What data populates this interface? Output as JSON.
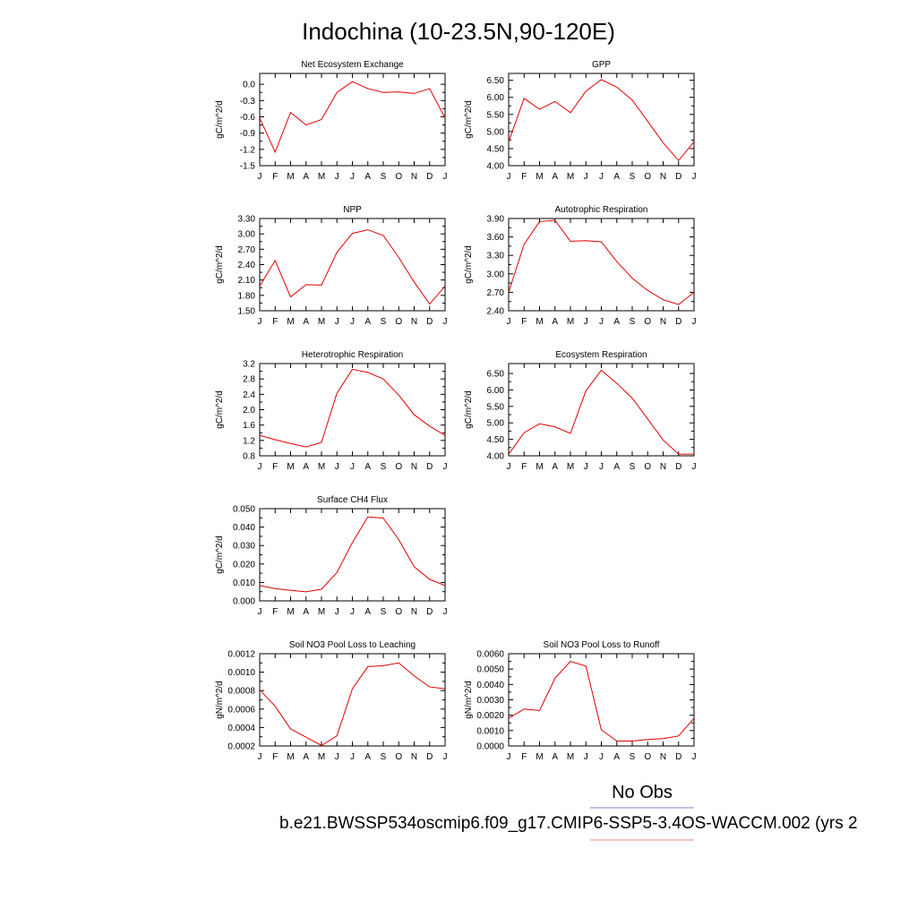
{
  "figure": {
    "title": "Indochina (10-23.5N,90-120E)",
    "months": [
      "J",
      "F",
      "M",
      "A",
      "M",
      "J",
      "J",
      "A",
      "S",
      "O",
      "N",
      "D",
      "J"
    ],
    "legend": {
      "obs_label": "No Obs",
      "case_label": "b.e21.BWSSP534oscmip6.f09_g17.CMIP6-SSP5-3.4OS-WACCM.002 (yrs 2",
      "obs_color": "#8080e0",
      "case_color": "#f08080"
    },
    "line_color": "#e00000"
  },
  "chart_data": [
    {
      "type": "line",
      "title": "Net Ecosystem Exchange",
      "ylabel": "gC/m^2/d",
      "ylim": [
        -1.5,
        0.2
      ],
      "yticks": [
        -1.5,
        -1.2,
        -0.9,
        -0.6,
        -0.3,
        0.0
      ],
      "ytick_labels": [
        "-1.5",
        "-1.2",
        "-0.9",
        "-0.6",
        "-0.3",
        "0.0"
      ],
      "x": [
        "J",
        "F",
        "M",
        "A",
        "M",
        "J",
        "J",
        "A",
        "S",
        "O",
        "N",
        "D",
        "J"
      ],
      "values": [
        -0.62,
        -1.25,
        -0.52,
        -0.75,
        -0.65,
        -0.15,
        0.05,
        -0.08,
        -0.15,
        -0.14,
        -0.17,
        -0.08,
        -0.62
      ]
    },
    {
      "type": "line",
      "title": "GPP",
      "ylabel": "gC/m^2/d",
      "ylim": [
        4.0,
        6.7
      ],
      "yticks": [
        4.0,
        4.5,
        5.0,
        5.5,
        6.0,
        6.5
      ],
      "ytick_labels": [
        "4.00",
        "4.50",
        "5.00",
        "5.50",
        "6.00",
        "6.50"
      ],
      "x": [
        "J",
        "F",
        "M",
        "A",
        "M",
        "J",
        "J",
        "A",
        "S",
        "O",
        "N",
        "D",
        "J"
      ],
      "values": [
        4.7,
        5.97,
        5.65,
        5.88,
        5.55,
        6.18,
        6.52,
        6.3,
        5.92,
        5.3,
        4.67,
        4.15,
        4.7
      ]
    },
    {
      "type": "line",
      "title": "NPP",
      "ylabel": "gC/m^2/d",
      "ylim": [
        1.5,
        3.3
      ],
      "yticks": [
        1.5,
        1.8,
        2.1,
        2.4,
        2.7,
        3.0,
        3.3
      ],
      "ytick_labels": [
        "1.50",
        "1.80",
        "2.10",
        "2.40",
        "2.70",
        "3.00",
        "3.30"
      ],
      "x": [
        "J",
        "F",
        "M",
        "A",
        "M",
        "J",
        "J",
        "A",
        "S",
        "O",
        "N",
        "D",
        "J"
      ],
      "values": [
        1.98,
        2.48,
        1.77,
        2.01,
        2.0,
        2.64,
        3.01,
        3.08,
        2.97,
        2.54,
        2.06,
        1.63,
        1.98
      ]
    },
    {
      "type": "line",
      "title": "Autotrophic Respiration",
      "ylabel": "gC/m^2/d",
      "ylim": [
        2.4,
        3.9
      ],
      "yticks": [
        2.4,
        2.7,
        3.0,
        3.3,
        3.6,
        3.9
      ],
      "ytick_labels": [
        "2.40",
        "2.70",
        "3.00",
        "3.30",
        "3.60",
        "3.90"
      ],
      "x": [
        "J",
        "F",
        "M",
        "A",
        "M",
        "J",
        "J",
        "A",
        "S",
        "O",
        "N",
        "D",
        "J"
      ],
      "values": [
        2.7,
        3.48,
        3.85,
        3.87,
        3.53,
        3.54,
        3.52,
        3.2,
        2.93,
        2.73,
        2.58,
        2.5,
        2.7
      ]
    },
    {
      "type": "line",
      "title": "Heterotrophic Respiration",
      "ylabel": "gC/m^2/d",
      "ylim": [
        0.8,
        3.2
      ],
      "yticks": [
        0.8,
        1.2,
        1.6,
        2.0,
        2.4,
        2.8,
        3.2
      ],
      "ytick_labels": [
        "0.8",
        "1.2",
        "1.6",
        "2.0",
        "2.4",
        "2.8",
        "3.2"
      ],
      "x": [
        "J",
        "F",
        "M",
        "A",
        "M",
        "J",
        "J",
        "A",
        "S",
        "O",
        "N",
        "D",
        "J"
      ],
      "values": [
        1.33,
        1.22,
        1.12,
        1.03,
        1.15,
        2.43,
        3.05,
        2.97,
        2.8,
        2.38,
        1.87,
        1.57,
        1.33
      ]
    },
    {
      "type": "line",
      "title": "Ecosystem Respiration",
      "ylabel": "gC/m^2/d",
      "ylim": [
        4.0,
        6.8
      ],
      "yticks": [
        4.0,
        4.5,
        5.0,
        5.5,
        6.0,
        6.5
      ],
      "ytick_labels": [
        "4.00",
        "4.50",
        "5.00",
        "5.50",
        "6.00",
        "6.50"
      ],
      "x": [
        "J",
        "F",
        "M",
        "A",
        "M",
        "J",
        "J",
        "A",
        "S",
        "O",
        "N",
        "D",
        "J"
      ],
      "values": [
        4.05,
        4.7,
        4.97,
        4.88,
        4.68,
        5.97,
        6.6,
        6.2,
        5.75,
        5.12,
        4.48,
        4.05,
        4.05
      ]
    },
    {
      "type": "line",
      "title": "Surface CH4 Flux",
      "ylabel": "gC/m^2/d",
      "ylim": [
        0.0,
        0.05
      ],
      "yticks": [
        0.0,
        0.01,
        0.02,
        0.03,
        0.04,
        0.05
      ],
      "ytick_labels": [
        "0.000",
        "0.010",
        "0.020",
        "0.030",
        "0.040",
        "0.050"
      ],
      "x": [
        "J",
        "F",
        "M",
        "A",
        "M",
        "J",
        "J",
        "A",
        "S",
        "O",
        "N",
        "D",
        "J"
      ],
      "values": [
        0.0083,
        0.0067,
        0.0057,
        0.0049,
        0.0063,
        0.0154,
        0.0316,
        0.0455,
        0.0449,
        0.0332,
        0.0185,
        0.0117,
        0.0083
      ]
    },
    {
      "type": "line",
      "title": "Soil NO3 Pool Loss to Leaching",
      "ylabel": "gN/m^2/d",
      "ylim": [
        0.0002,
        0.0012
      ],
      "yticks": [
        0.0002,
        0.0004,
        0.0006,
        0.0008,
        0.001,
        0.0012
      ],
      "ytick_labels": [
        "0.0002",
        "0.0004",
        "0.0006",
        "0.0008",
        "0.0010",
        "0.0012"
      ],
      "x": [
        "J",
        "F",
        "M",
        "A",
        "M",
        "J",
        "J",
        "A",
        "S",
        "O",
        "N",
        "D",
        "J"
      ],
      "values": [
        0.00081,
        0.00063,
        0.000385,
        0.000295,
        0.000205,
        0.00031,
        0.00082,
        0.00106,
        0.00107,
        0.0011,
        0.00096,
        0.00084,
        0.00082
      ]
    },
    {
      "type": "line",
      "title": "Soil NO3 Pool Loss to Runoff",
      "ylabel": "gN/m^2/d",
      "ylim": [
        0.0,
        0.006
      ],
      "yticks": [
        0.0,
        0.001,
        0.002,
        0.003,
        0.004,
        0.005,
        0.006
      ],
      "ytick_labels": [
        "0.0000",
        "0.0010",
        "0.0020",
        "0.0030",
        "0.0040",
        "0.0050",
        "0.0060"
      ],
      "x": [
        "J",
        "F",
        "M",
        "A",
        "M",
        "J",
        "J",
        "A",
        "S",
        "O",
        "N",
        "D",
        "J"
      ],
      "values": [
        0.0018,
        0.0024,
        0.0023,
        0.0044,
        0.0055,
        0.0052,
        0.00105,
        0.00032,
        0.00032,
        0.00042,
        0.00048,
        0.00065,
        0.0018
      ]
    }
  ]
}
